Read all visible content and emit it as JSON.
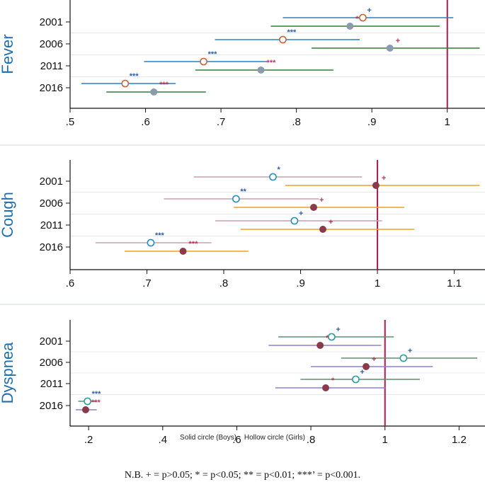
{
  "chart_data": [
    {
      "type": "scatter",
      "panel_label": "Fever",
      "xlim": [
        0.5,
        1.05
      ],
      "xticks": [
        ".5",
        ".6",
        ".7",
        ".8",
        ".9",
        "1"
      ],
      "xtick_values": [
        0.5,
        0.6,
        0.7,
        0.8,
        0.9,
        1.0
      ],
      "reference_line": 1,
      "categories": [
        "2001",
        "2006",
        "2011",
        "2016"
      ],
      "series": [
        {
          "name": "Girls",
          "marker": "hollow",
          "marker_color": "#c8663f",
          "ci_color": "#2f7fbf",
          "estimates": [
            0.888,
            0.782,
            0.677,
            0.573
          ],
          "ci_low": [
            0.782,
            0.692,
            0.598,
            0.515
          ],
          "ci_high": [
            1.008,
            0.884,
            0.761,
            0.64
          ],
          "significance": [
            "+",
            "***",
            "***",
            "***"
          ],
          "sig_colors": [
            "#2f5fa0",
            "#2f5fa0",
            "#2f5fa0",
            "#2f5fa0"
          ]
        },
        {
          "name": "Boys",
          "marker": "solid",
          "marker_color": "#8a9bb0",
          "ci_color": "#2e7d32",
          "estimates": [
            0.871,
            0.924,
            0.753,
            0.611
          ],
          "ci_low": [
            0.766,
            0.82,
            0.666,
            0.548
          ],
          "ci_high": [
            0.99,
            1.043,
            0.849,
            0.68
          ],
          "significance": [
            "*",
            "+",
            "***",
            "***"
          ],
          "sig_colors": [
            "#b83a5a",
            "#b83a5a",
            "#b83a5a",
            "#b83a5a"
          ]
        }
      ]
    },
    {
      "type": "scatter",
      "panel_label": "Cough",
      "xlim": [
        0.6,
        1.14
      ],
      "xticks": [
        ".6",
        ".7",
        ".8",
        ".9",
        "1",
        "1.1"
      ],
      "xtick_values": [
        0.6,
        0.7,
        0.8,
        0.9,
        1.0,
        1.1
      ],
      "reference_line": 1,
      "categories": [
        "2001",
        "2006",
        "2011",
        "2016"
      ],
      "series": [
        {
          "name": "Girls",
          "marker": "hollow",
          "marker_color": "#2a8fc0",
          "ci_color": "#c9a0ab",
          "estimates": [
            0.864,
            0.816,
            0.892,
            0.705
          ],
          "ci_low": [
            0.761,
            0.722,
            0.789,
            0.633
          ],
          "ci_high": [
            0.98,
            0.924,
            1.006,
            0.784
          ],
          "significance": [
            "*",
            "**",
            "+",
            "***"
          ],
          "sig_colors": [
            "#2f5fa0",
            "#2f5fa0",
            "#2f5fa0",
            "#2f5fa0"
          ]
        },
        {
          "name": "Boys",
          "marker": "solid",
          "marker_color": "#8b3a4a",
          "ci_color": "#f0a020",
          "estimates": [
            0.998,
            0.917,
            0.929,
            0.747
          ],
          "ci_low": [
            0.88,
            0.813,
            0.822,
            0.671
          ],
          "ci_high": [
            1.133,
            1.035,
            1.048,
            0.832
          ],
          "significance": [
            "+",
            "+",
            "+",
            "***"
          ],
          "sig_colors": [
            "#b83a5a",
            "#b83a5a",
            "#b83a5a",
            "#b83a5a"
          ]
        }
      ]
    },
    {
      "type": "scatter",
      "panel_label": "Dyspnea",
      "xlim": [
        0.15,
        1.27
      ],
      "xticks": [
        ".2",
        ".4",
        ".6",
        ".8",
        "1",
        "1.2"
      ],
      "xtick_values": [
        0.2,
        0.4,
        0.6,
        0.8,
        1.0,
        1.2
      ],
      "reference_line": 1,
      "categories": [
        "2001",
        "2006",
        "2011",
        "2016"
      ],
      "series": [
        {
          "name": "Girls",
          "marker": "hollow",
          "marker_color": "#2aa0a0",
          "ci_color": "#5f8f6f",
          "estimates": [
            0.856,
            1.05,
            0.921,
            0.197
          ],
          "ci_low": [
            0.712,
            0.882,
            0.772,
            0.172
          ],
          "ci_high": [
            1.024,
            1.249,
            1.094,
            0.222
          ],
          "significance": [
            "+",
            "+",
            "+",
            "***"
          ],
          "sig_colors": [
            "#2f5fa0",
            "#2f5fa0",
            "#2f5fa0",
            "#2f5fa0"
          ]
        },
        {
          "name": "Boys",
          "marker": "solid",
          "marker_color": "#8b3a4a",
          "ci_color": "#8d7fd0",
          "estimates": [
            0.825,
            0.949,
            0.84,
            0.192
          ],
          "ci_low": [
            0.686,
            0.8,
            0.704,
            0.165
          ],
          "ci_high": [
            0.99,
            1.129,
            1.001,
            0.222
          ],
          "significance": [
            "*",
            "+",
            "*",
            "***"
          ],
          "sig_colors": [
            "#b83a5a",
            "#b83a5a",
            "#b83a5a",
            "#b83a5a"
          ]
        }
      ]
    }
  ],
  "legend": {
    "solid": "Solid circle (Boys)",
    "hollow": "Hollow circle (Girls)"
  },
  "footnote": "N.B. + = p>0.05; * = p<0.05; ** = p<0.01; ***’ = p<0.001.",
  "colors": {
    "reference_line": "#b0174f",
    "frame": "#111111",
    "panel_separator": "#d0d8e0",
    "row_guide": "#e4e8ee"
  }
}
